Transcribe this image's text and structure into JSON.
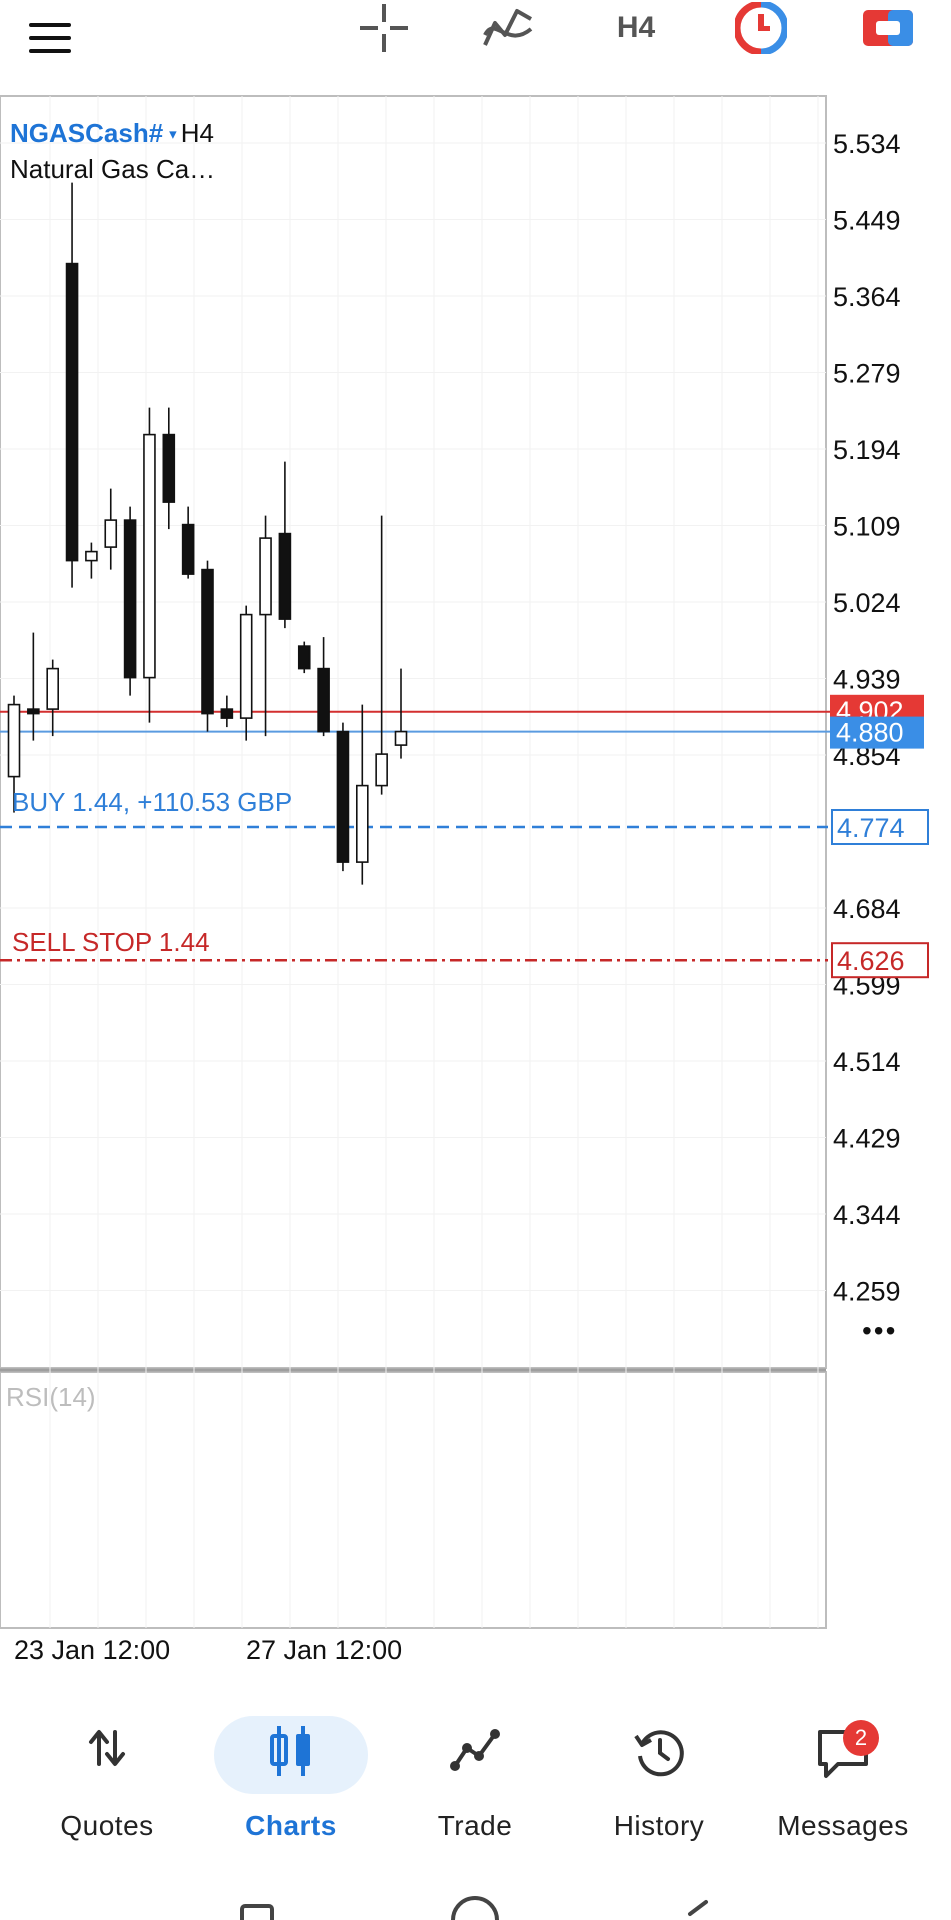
{
  "toolbar": {
    "timeframe": "H4",
    "icons": [
      "menu-icon",
      "crosshair-icon",
      "indicators-icon",
      "timeframe-button",
      "one-click-trading-icon",
      "trade-panel-icon"
    ]
  },
  "chart": {
    "symbol": "NGASCash#",
    "caret": "▾",
    "timeframe": "H4",
    "description": "Natural Gas Ca…",
    "price_labels": [
      "5.534",
      "5.449",
      "5.364",
      "5.279",
      "5.194",
      "5.109",
      "5.024",
      "4.939",
      "4.854",
      "4.684",
      "4.599",
      "4.514",
      "4.429",
      "4.344",
      "4.259"
    ],
    "ask_price": "4.902",
    "bid_price": "4.880",
    "position_label": "BUY 1.44,  +110.53 GBP",
    "position_price": "4.774",
    "order_label": "SELL STOP 1.44",
    "order_price": "4.626",
    "indicator_label": "RSI(14)",
    "time_labels": [
      "23 Jan 12:00",
      "27 Jan 12:00"
    ],
    "more_menu": "•••"
  },
  "chart_data": {
    "type": "candlestick",
    "symbol": "NGASCash#",
    "timeframe": "H4",
    "y_ticks": [
      5.534,
      5.449,
      5.364,
      5.279,
      5.194,
      5.109,
      5.024,
      4.939,
      4.854,
      4.684,
      4.599,
      4.514,
      4.429,
      4.344,
      4.259
    ],
    "ylim": [
      4.23,
      5.58
    ],
    "candles": [
      {
        "o": 4.83,
        "h": 4.92,
        "l": 4.79,
        "c": 4.91
      },
      {
        "o": 4.905,
        "h": 4.99,
        "l": 4.87,
        "c": 4.9
      },
      {
        "o": 4.905,
        "h": 4.96,
        "l": 4.875,
        "c": 4.95
      },
      {
        "o": 5.4,
        "h": 5.49,
        "l": 5.04,
        "c": 5.07
      },
      {
        "o": 5.07,
        "h": 5.09,
        "l": 5.05,
        "c": 5.08
      },
      {
        "o": 5.085,
        "h": 5.15,
        "l": 5.06,
        "c": 5.115
      },
      {
        "o": 5.115,
        "h": 5.13,
        "l": 4.92,
        "c": 4.94
      },
      {
        "o": 4.94,
        "h": 5.24,
        "l": 4.89,
        "c": 5.21
      },
      {
        "o": 5.21,
        "h": 5.24,
        "l": 5.105,
        "c": 5.135
      },
      {
        "o": 5.11,
        "h": 5.13,
        "l": 5.05,
        "c": 5.055
      },
      {
        "o": 5.06,
        "h": 5.07,
        "l": 4.88,
        "c": 4.9
      },
      {
        "o": 4.905,
        "h": 4.92,
        "l": 4.885,
        "c": 4.895
      },
      {
        "o": 4.895,
        "h": 5.02,
        "l": 4.87,
        "c": 5.01
      },
      {
        "o": 5.01,
        "h": 5.12,
        "l": 4.875,
        "c": 5.095
      },
      {
        "o": 5.1,
        "h": 5.18,
        "l": 4.995,
        "c": 5.005
      },
      {
        "o": 4.975,
        "h": 4.98,
        "l": 4.945,
        "c": 4.95
      },
      {
        "o": 4.95,
        "h": 4.985,
        "l": 4.875,
        "c": 4.88
      },
      {
        "o": 4.88,
        "h": 4.89,
        "l": 4.725,
        "c": 4.735
      },
      {
        "o": 4.735,
        "h": 4.91,
        "l": 4.71,
        "c": 4.82
      },
      {
        "o": 4.82,
        "h": 5.12,
        "l": 4.81,
        "c": 4.855
      },
      {
        "o": 4.865,
        "h": 4.95,
        "l": 4.85,
        "c": 4.88
      }
    ],
    "lines": [
      {
        "name": "ask",
        "value": 4.902,
        "color": "#d32f2f"
      },
      {
        "name": "bid",
        "value": 4.88,
        "color": "#2f7fd8"
      },
      {
        "name": "BUY 1.44",
        "value": 4.774,
        "color": "#2f7fd8",
        "style": "dashed"
      },
      {
        "name": "SELL STOP 1.44",
        "value": 4.626,
        "color": "#c62828",
        "style": "dash-dot"
      }
    ],
    "x_labels": [
      "23 Jan 12:00",
      "27 Jan 12:00"
    ],
    "indicator": "RSI(14)"
  },
  "nav": {
    "items": [
      {
        "label": "Quotes",
        "icon": "quotes-icon"
      },
      {
        "label": "Charts",
        "icon": "charts-icon"
      },
      {
        "label": "Trade",
        "icon": "trade-icon"
      },
      {
        "label": "History",
        "icon": "history-icon"
      },
      {
        "label": "Messages",
        "icon": "messages-icon"
      }
    ],
    "messages_badge": "2"
  },
  "colors": {
    "accent": "#1e74d6",
    "ask_red": "#e53935",
    "bid_blue": "#3a8ee6"
  }
}
